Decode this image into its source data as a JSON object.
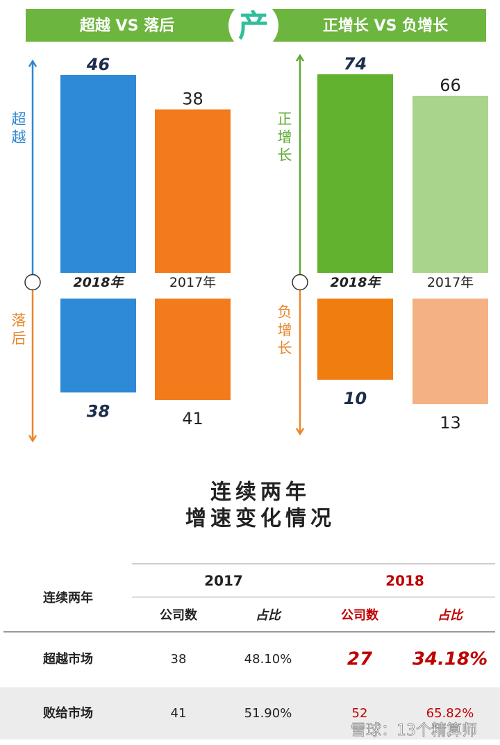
{
  "header": {
    "left": "超越 VS 落后",
    "logo": "产",
    "right": "正增长 VS 负增长"
  },
  "chart_data": [
    {
      "type": "bar",
      "categories": [
        "2018年",
        "2017年"
      ],
      "series": [
        {
          "name": "超越",
          "color": "#2e86d0",
          "colors": [
            "#2e8ad6",
            "#f27b1c"
          ],
          "values": [
            46,
            38
          ]
        },
        {
          "name": "落后",
          "color": "#e8862a",
          "colors": [
            "#2e8ad6",
            "#f27b1c"
          ],
          "values": [
            38,
            41
          ]
        }
      ]
    },
    {
      "type": "bar",
      "categories": [
        "2018年",
        "2017年"
      ],
      "series": [
        {
          "name": "正增长",
          "color": "#5fa832",
          "colors": [
            "#63b22f",
            "#a9d48b"
          ],
          "values": [
            74,
            66
          ]
        },
        {
          "name": "负增长",
          "color": "#e8862a",
          "colors": [
            "#f07d10",
            "#f4b183"
          ],
          "values": [
            10,
            13
          ]
        }
      ]
    }
  ],
  "section_title": [
    "连续两年",
    "增速变化情况"
  ],
  "table": {
    "corner": "连续两年",
    "years": [
      "2017",
      "2018"
    ],
    "columns": [
      "公司数",
      "占比",
      "公司数",
      "占比"
    ],
    "rows": [
      [
        "超越市场",
        "38",
        "48.10%",
        "27",
        "34.18%"
      ],
      [
        "败给市场",
        "41",
        "51.90%",
        "52",
        "65.82%"
      ]
    ]
  },
  "footer": {
    "watermark": "雪球：13个精算师"
  }
}
